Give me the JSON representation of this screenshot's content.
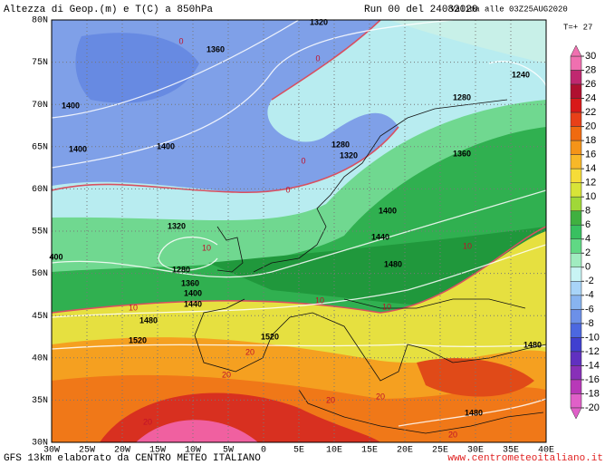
{
  "header": {
    "title": "Altezza di Geop.(m) e T(C) a 850hPa",
    "run": "Run 00 del 24082020",
    "valid": "Valida alle 03Z25AUG2020",
    "step": "T=+ 27"
  },
  "latitude_labels": [
    "80N",
    "75N",
    "70N",
    "65N",
    "60N",
    "55N",
    "50N",
    "45N",
    "40N",
    "35N",
    "30N"
  ],
  "longitude_labels": [
    "30W",
    "25W",
    "20W",
    "15W",
    "10W",
    "5W",
    "0",
    "5E",
    "10E",
    "15E",
    "20E",
    "25E",
    "30E",
    "35E",
    "40E"
  ],
  "geopotential_labels": [
    1320,
    1360,
    1240,
    1400,
    1280,
    1400,
    1400,
    1280,
    1320,
    1360,
    1400,
    1320,
    1440,
    400,
    1280,
    1480,
    1360,
    1400,
    1440,
    1480,
    1520,
    1520,
    1480,
    1480
  ],
  "temperature_labels": [
    0,
    0,
    0,
    0,
    10,
    10,
    10,
    10,
    10,
    20,
    20,
    20,
    20,
    20,
    20
  ],
  "colorbar": {
    "ticks": [
      30,
      28,
      26,
      24,
      22,
      20,
      18,
      16,
      14,
      12,
      10,
      8,
      6,
      4,
      2,
      0,
      -2,
      -4,
      -6,
      -8,
      -10,
      -12,
      -14,
      -16,
      -18,
      -20
    ],
    "colors": [
      "#f070b0",
      "#c02870",
      "#b01030",
      "#d81818",
      "#e84018",
      "#f06a10",
      "#f59418",
      "#f8b828",
      "#f6dc38",
      "#d8e438",
      "#a0d838",
      "#40b040",
      "#38c060",
      "#60d884",
      "#a0ecc0",
      "#c8f4f4",
      "#a8d4f8",
      "#88b4f0",
      "#6c90e8",
      "#4c68e0",
      "#4040d0",
      "#6030c0",
      "#8830b8",
      "#b838b8",
      "#e060c8"
    ]
  },
  "footer": {
    "source": "GFS 13km elaborato da CENTRO METEO ITALIANO",
    "site": "www.centrometeoitaliano.it"
  }
}
